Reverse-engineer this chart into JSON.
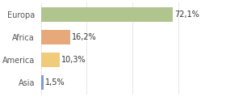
{
  "categories": [
    "Europa",
    "Africa",
    "America",
    "Asia"
  ],
  "values": [
    72.1,
    16.2,
    10.3,
    1.5
  ],
  "labels": [
    "72,1%",
    "16,2%",
    "10,3%",
    "1,5%"
  ],
  "bar_colors": [
    "#b0c48e",
    "#e8a97a",
    "#f0cc7a",
    "#7a9ed4"
  ],
  "background_color": "#ffffff",
  "xlim": [
    0,
    100
  ],
  "bar_height": 0.65,
  "label_fontsize": 7.0,
  "tick_fontsize": 7.0,
  "grid_color": "#dddddd",
  "grid_ticks": [
    0,
    25,
    50,
    75,
    100
  ]
}
